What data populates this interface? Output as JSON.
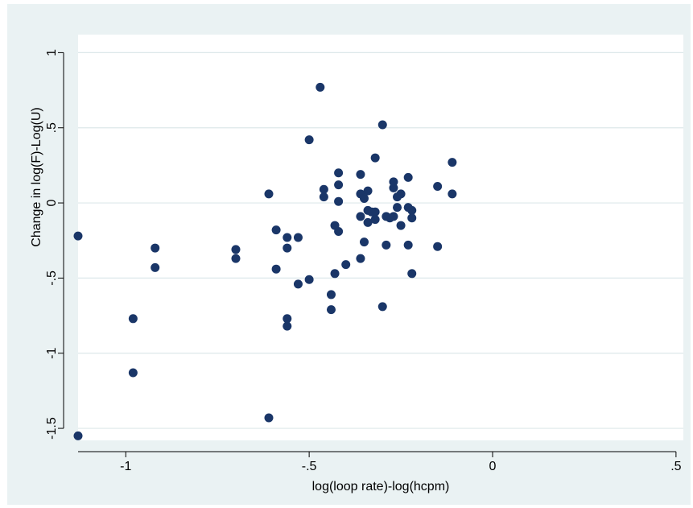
{
  "chart_data": {
    "type": "scatter",
    "title": "",
    "xlabel": "log(loop rate)-log(hcpm)",
    "ylabel": "Change in log(F)-Log(U)",
    "xlim": [
      -1.13,
      0.52
    ],
    "ylim": [
      -1.58,
      1.12
    ],
    "x_ticks": [
      {
        "value": -1,
        "label": "-1"
      },
      {
        "value": -0.5,
        "label": "-.5"
      },
      {
        "value": 0,
        "label": "0"
      },
      {
        "value": 0.5,
        "label": ".5"
      }
    ],
    "y_ticks": [
      {
        "value": 1,
        "label": "1"
      },
      {
        "value": 0.5,
        "label": ".5"
      },
      {
        "value": 0,
        "label": "0"
      },
      {
        "value": -0.5,
        "label": "-.5"
      },
      {
        "value": -1,
        "label": "-1"
      },
      {
        "value": -1.5,
        "label": "-1.5"
      }
    ],
    "grid": "horizontal",
    "legend": "none",
    "colors": {
      "marker": "#1a3668",
      "background": "#eaf2f3",
      "plot_area": "#ffffff",
      "grid": "#dde8ea"
    },
    "points": [
      {
        "x": -1.13,
        "y": -0.22
      },
      {
        "x": -1.13,
        "y": -1.55
      },
      {
        "x": -0.98,
        "y": -0.77
      },
      {
        "x": -0.98,
        "y": -1.13
      },
      {
        "x": -0.92,
        "y": -0.3
      },
      {
        "x": -0.92,
        "y": -0.43
      },
      {
        "x": -0.7,
        "y": -0.31
      },
      {
        "x": -0.7,
        "y": -0.37
      },
      {
        "x": -0.61,
        "y": 0.06
      },
      {
        "x": -0.61,
        "y": -1.43
      },
      {
        "x": -0.59,
        "y": -0.18
      },
      {
        "x": -0.59,
        "y": -0.44
      },
      {
        "x": -0.56,
        "y": -0.23
      },
      {
        "x": -0.56,
        "y": -0.3
      },
      {
        "x": -0.56,
        "y": -0.77
      },
      {
        "x": -0.56,
        "y": -0.82
      },
      {
        "x": -0.53,
        "y": -0.23
      },
      {
        "x": -0.53,
        "y": -0.54
      },
      {
        "x": -0.5,
        "y": 0.42
      },
      {
        "x": -0.5,
        "y": -0.51
      },
      {
        "x": -0.47,
        "y": 0.77
      },
      {
        "x": -0.46,
        "y": 0.09
      },
      {
        "x": -0.46,
        "y": 0.04
      },
      {
        "x": -0.44,
        "y": -0.61
      },
      {
        "x": -0.44,
        "y": -0.71
      },
      {
        "x": -0.43,
        "y": -0.15
      },
      {
        "x": -0.43,
        "y": -0.47
      },
      {
        "x": -0.42,
        "y": 0.2
      },
      {
        "x": -0.42,
        "y": 0.12
      },
      {
        "x": -0.42,
        "y": 0.01
      },
      {
        "x": -0.42,
        "y": -0.19
      },
      {
        "x": -0.4,
        "y": -0.41
      },
      {
        "x": -0.36,
        "y": 0.19
      },
      {
        "x": -0.36,
        "y": 0.06
      },
      {
        "x": -0.36,
        "y": -0.09
      },
      {
        "x": -0.36,
        "y": -0.37
      },
      {
        "x": -0.35,
        "y": 0.03
      },
      {
        "x": -0.35,
        "y": -0.26
      },
      {
        "x": -0.34,
        "y": 0.08
      },
      {
        "x": -0.34,
        "y": -0.05
      },
      {
        "x": -0.34,
        "y": -0.13
      },
      {
        "x": -0.33,
        "y": -0.06
      },
      {
        "x": -0.32,
        "y": -0.06
      },
      {
        "x": -0.32,
        "y": -0.11
      },
      {
        "x": -0.32,
        "y": 0.3
      },
      {
        "x": -0.3,
        "y": 0.52
      },
      {
        "x": -0.3,
        "y": -0.69
      },
      {
        "x": -0.29,
        "y": -0.09
      },
      {
        "x": -0.29,
        "y": -0.28
      },
      {
        "x": -0.28,
        "y": -0.1
      },
      {
        "x": -0.27,
        "y": 0.1
      },
      {
        "x": -0.27,
        "y": -0.09
      },
      {
        "x": -0.27,
        "y": 0.14
      },
      {
        "x": -0.26,
        "y": -0.03
      },
      {
        "x": -0.26,
        "y": 0.04
      },
      {
        "x": -0.25,
        "y": 0.06
      },
      {
        "x": -0.25,
        "y": -0.15
      },
      {
        "x": -0.23,
        "y": 0.17
      },
      {
        "x": -0.23,
        "y": -0.03
      },
      {
        "x": -0.23,
        "y": -0.28
      },
      {
        "x": -0.22,
        "y": -0.05
      },
      {
        "x": -0.22,
        "y": -0.1
      },
      {
        "x": -0.22,
        "y": -0.47
      },
      {
        "x": -0.15,
        "y": 0.11
      },
      {
        "x": -0.15,
        "y": -0.29
      },
      {
        "x": -0.11,
        "y": 0.27
      },
      {
        "x": -0.11,
        "y": 0.06
      }
    ]
  }
}
